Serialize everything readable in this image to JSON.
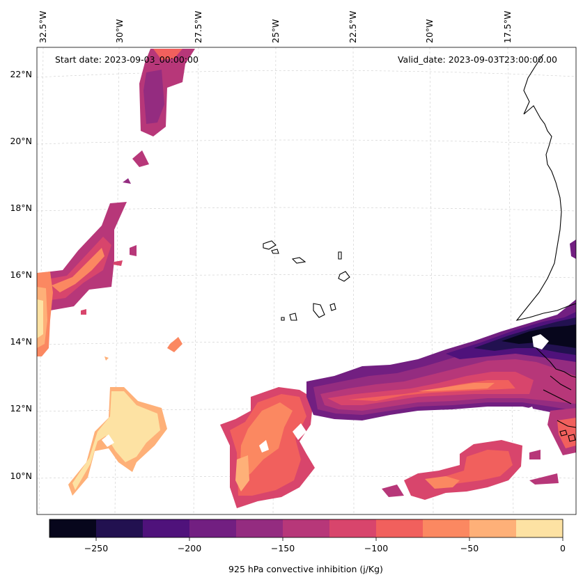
{
  "header": {
    "start_date": "Start date: 2023-09-03_00:00:00",
    "valid_date": "Valid_date: 2023-09-03T23:00:00.00"
  },
  "axes": {
    "longitude_labels": [
      "32.5°W",
      "30°W",
      "27.5°W",
      "25°W",
      "22.5°W",
      "20°W",
      "17.5°W"
    ],
    "latitude_labels": [
      "22°N",
      "20°N",
      "18°N",
      "16°N",
      "14°N",
      "12°N",
      "10°N"
    ]
  },
  "colorbar": {
    "label": "925 hPa convective inhibition (j/Kg)",
    "tick_labels": [
      "−250",
      "−200",
      "−150",
      "−100",
      "−50",
      "0"
    ],
    "tick_values": [
      -250,
      -200,
      -150,
      -100,
      -50,
      0
    ],
    "range": [
      -275,
      0
    ],
    "levels": [
      -275,
      -250,
      -225,
      -200,
      -175,
      -150,
      -125,
      -100,
      -75,
      -50,
      -25,
      0
    ],
    "colors": [
      "#07061c",
      "#221150",
      "#4f127b",
      "#721f81",
      "#942c80",
      "#b73779",
      "#d8456c",
      "#f1605d",
      "#fb8861",
      "#feb078",
      "#fde2a3"
    ]
  },
  "map": {
    "colormap": "magma",
    "land_outline_color": "#000000",
    "gridlines": true
  }
}
